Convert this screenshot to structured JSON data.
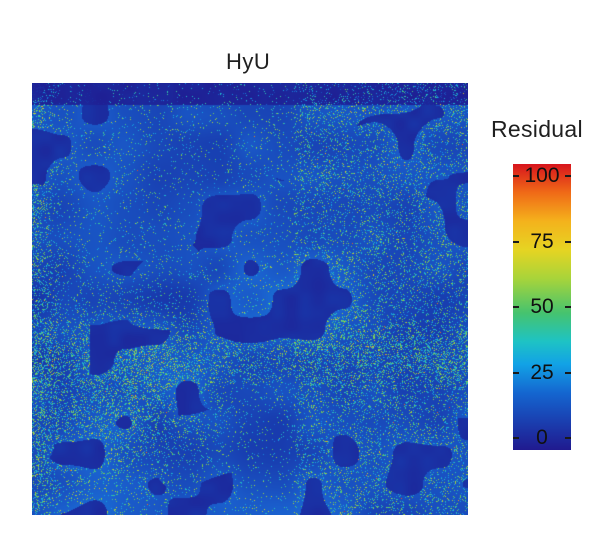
{
  "figure": {
    "title": "HyU"
  },
  "colorbar": {
    "title": "Residual",
    "ticks": [
      "100",
      "75",
      "50",
      "25",
      "0"
    ],
    "min": 0,
    "max": 100,
    "colormap": "jet",
    "colors": [
      "#201a8f",
      "#1466d0",
      "#1ec3c4",
      "#a8d43a",
      "#f4b21c",
      "#d7151d"
    ]
  },
  "heatmap": {
    "description_colors": {
      "background": "#1a3fa8",
      "dark": "#1a237a",
      "mid": "#2a5cc8",
      "hot": "#f0a020"
    }
  }
}
